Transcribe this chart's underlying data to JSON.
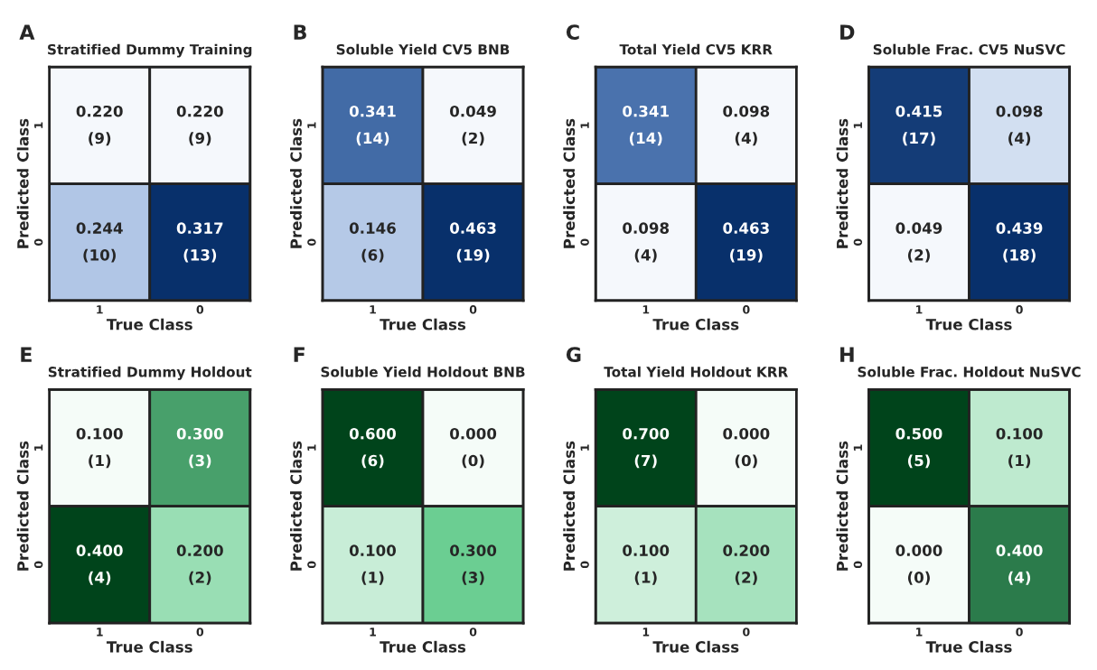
{
  "chart_data": [
    {
      "type": "heatmap",
      "title": "Stratified Dummy Training",
      "xlabel": "True Class",
      "ylabel": "Predicted Class",
      "categories": [
        "1",
        "0"
      ],
      "y_categories": [
        "1",
        "0"
      ],
      "cells": [
        [
          0.22,
          0.22
        ],
        [
          0.244,
          0.317
        ]
      ],
      "cell_labels": [
        [
          "0.220",
          "0.220"
        ],
        [
          "0.244",
          "0.317"
        ]
      ],
      "data_labels": true,
      "color": "#08306b",
      "annotations": [
        "A",
        "(9)",
        "(9)",
        "(10)",
        "(13)"
      ]
    },
    {
      "type": "heatmap",
      "title": "Soluble Yield CV5 BNB",
      "xlabel": "True Class",
      "ylabel": "Predicted Class",
      "categories": [
        "1",
        "0"
      ],
      "y_categories": [
        "1",
        "0"
      ],
      "cells": [
        [
          0.341,
          0.049
        ],
        [
          0.146,
          0.463
        ]
      ],
      "cell_labels": [
        [
          "0.341",
          "0.049"
        ],
        [
          "0.146",
          "0.463"
        ]
      ],
      "data_labels": true,
      "color": "#08306b",
      "annotations": [
        "B",
        "(14)",
        "(2)",
        "(6)",
        "(19)"
      ]
    },
    {
      "type": "heatmap",
      "title": "Total Yield CV5 KRR",
      "xlabel": "True Class",
      "ylabel": "Predicted Class",
      "categories": [
        "1",
        "0"
      ],
      "y_categories": [
        "1",
        "0"
      ],
      "cells": [
        [
          0.341,
          0.098
        ],
        [
          0.098,
          0.463
        ]
      ],
      "cell_labels": [
        [
          "0.341",
          "0.098"
        ],
        [
          "0.098",
          "0.463"
        ]
      ],
      "data_labels": true,
      "color": "#08306b",
      "annotations": [
        "C",
        "(14)",
        "(4)",
        "(4)",
        "(19)"
      ]
    },
    {
      "type": "heatmap",
      "title": "Soluble Frac. CV5 NuSVC",
      "xlabel": "True Class",
      "ylabel": "Predicted Class",
      "categories": [
        "1",
        "0"
      ],
      "y_categories": [
        "1",
        "0"
      ],
      "cells": [
        [
          0.415,
          0.098
        ],
        [
          0.049,
          0.439
        ]
      ],
      "cell_labels": [
        [
          "0.415",
          "0.098"
        ],
        [
          "0.049",
          "0.439"
        ]
      ],
      "data_labels": true,
      "color": "#08306b",
      "annotations": [
        "D",
        "(17)",
        "(4)",
        "(2)",
        "(18)"
      ]
    },
    {
      "type": "heatmap",
      "title": "Stratified Dummy Holdout",
      "xlabel": "True Class",
      "ylabel": "Predicted Class",
      "categories": [
        "1",
        "0"
      ],
      "y_categories": [
        "1",
        "0"
      ],
      "cells": [
        [
          0.1,
          0.3
        ],
        [
          0.4,
          0.2
        ]
      ],
      "cell_labels": [
        [
          "0.100",
          "0.300"
        ],
        [
          "0.400",
          "0.200"
        ]
      ],
      "data_labels": true,
      "color": "#00441b",
      "annotations": [
        "E",
        "(1)",
        "(3)",
        "(4)",
        "(2)"
      ]
    },
    {
      "type": "heatmap",
      "title": "Soluble Yield Holdout BNB",
      "xlabel": "True Class",
      "ylabel": "Predicted Class",
      "categories": [
        "1",
        "0"
      ],
      "y_categories": [
        "1",
        "0"
      ],
      "cells": [
        [
          0.6,
          0.0
        ],
        [
          0.1,
          0.3
        ]
      ],
      "cell_labels": [
        [
          "0.600",
          "0.000"
        ],
        [
          "0.100",
          "0.300"
        ]
      ],
      "data_labels": true,
      "color": "#00441b",
      "annotations": [
        "F",
        "(6)",
        "(0)",
        "(1)",
        "(3)"
      ]
    },
    {
      "type": "heatmap",
      "title": "Total Yield Holdout KRR",
      "xlabel": "True Class",
      "ylabel": "Predicted Class",
      "categories": [
        "1",
        "0"
      ],
      "y_categories": [
        "1",
        "0"
      ],
      "cells": [
        [
          0.7,
          0.0
        ],
        [
          0.1,
          0.2
        ]
      ],
      "cell_labels": [
        [
          "0.700",
          "0.000"
        ],
        [
          "0.100",
          "0.200"
        ]
      ],
      "data_labels": true,
      "color": "#00441b",
      "annotations": [
        "G",
        "(7)",
        "(0)",
        "(1)",
        "(2)"
      ]
    },
    {
      "type": "heatmap",
      "title": "Soluble Frac. Holdout NuSVC",
      "xlabel": "True Class",
      "ylabel": "Predicted Class",
      "categories": [
        "1",
        "0"
      ],
      "y_categories": [
        "1",
        "0"
      ],
      "cells": [
        [
          0.5,
          0.1
        ],
        [
          0.0,
          0.4
        ]
      ],
      "cell_labels": [
        [
          "0.500",
          "0.100"
        ],
        [
          "0.000",
          "0.400"
        ]
      ],
      "data_labels": true,
      "color": "#00441b",
      "annotations": [
        "H",
        "(5)",
        "(1)",
        "(0)",
        "(4)"
      ]
    }
  ]
}
